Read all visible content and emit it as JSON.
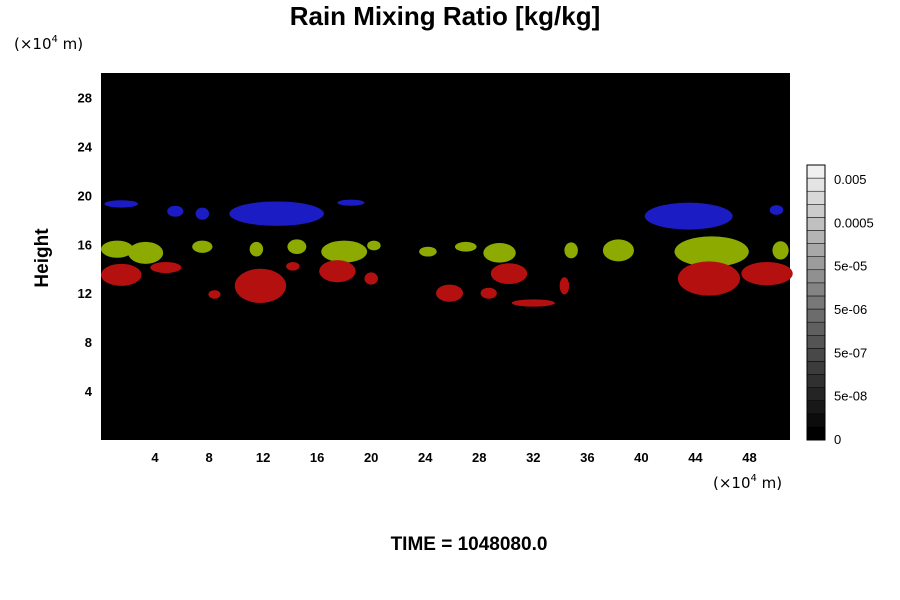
{
  "chart_data": {
    "type": "heatmap",
    "title": "Rain Mixing Ratio [kg/kg]",
    "ylabel": "Height",
    "x_unit_prefix": "(×10",
    "x_unit_exp": "4",
    "x_unit_suffix": " m)",
    "y_unit_prefix": "(×10",
    "y_unit_exp": "4",
    "y_unit_suffix": " m)",
    "xlim": [
      0,
      51
    ],
    "ylim": [
      0,
      30
    ],
    "xticks": [
      4,
      8,
      12,
      16,
      20,
      24,
      28,
      32,
      36,
      40,
      44,
      48
    ],
    "yticks": [
      4,
      8,
      12,
      16,
      20,
      24,
      28
    ],
    "background": "#000000",
    "colorbar": {
      "labels": [
        "0.005",
        "0.0005",
        "5e-05",
        "5e-06",
        "5e-07",
        "5e-08",
        "0"
      ],
      "levels": 21,
      "color_min": "#000000",
      "color_max": "#f0f0f0"
    },
    "layers": [
      {
        "color": "#1c1cc4",
        "blobs": [
          {
            "x": 1.5,
            "y": 19.3,
            "w": 2.5,
            "h": 0.6
          },
          {
            "x": 5.5,
            "y": 18.7,
            "w": 1.2,
            "h": 0.9
          },
          {
            "x": 7.5,
            "y": 18.5,
            "w": 1.0,
            "h": 1.0
          },
          {
            "x": 13.0,
            "y": 18.5,
            "w": 7.0,
            "h": 2.0
          },
          {
            "x": 18.5,
            "y": 19.4,
            "w": 2.0,
            "h": 0.5
          },
          {
            "x": 43.5,
            "y": 18.3,
            "w": 6.5,
            "h": 2.2
          },
          {
            "x": 50.0,
            "y": 18.8,
            "w": 1.0,
            "h": 0.8
          }
        ]
      },
      {
        "color": "#8caa00",
        "blobs": [
          {
            "x": 1.2,
            "y": 15.6,
            "w": 2.4,
            "h": 1.4
          },
          {
            "x": 3.3,
            "y": 15.3,
            "w": 2.6,
            "h": 1.8
          },
          {
            "x": 7.5,
            "y": 15.8,
            "w": 1.5,
            "h": 1.0
          },
          {
            "x": 11.5,
            "y": 15.6,
            "w": 1.0,
            "h": 1.2
          },
          {
            "x": 14.5,
            "y": 15.8,
            "w": 1.4,
            "h": 1.2
          },
          {
            "x": 18.0,
            "y": 15.4,
            "w": 3.4,
            "h": 1.8
          },
          {
            "x": 20.2,
            "y": 15.9,
            "w": 1.0,
            "h": 0.8
          },
          {
            "x": 24.2,
            "y": 15.4,
            "w": 1.3,
            "h": 0.8
          },
          {
            "x": 27.0,
            "y": 15.8,
            "w": 1.6,
            "h": 0.8
          },
          {
            "x": 29.5,
            "y": 15.3,
            "w": 2.4,
            "h": 1.6
          },
          {
            "x": 34.8,
            "y": 15.5,
            "w": 1.0,
            "h": 1.3
          },
          {
            "x": 38.3,
            "y": 15.5,
            "w": 2.3,
            "h": 1.8
          },
          {
            "x": 45.2,
            "y": 15.4,
            "w": 5.5,
            "h": 2.5
          },
          {
            "x": 50.3,
            "y": 15.5,
            "w": 1.2,
            "h": 1.5
          }
        ]
      },
      {
        "color": "#b41010",
        "blobs": [
          {
            "x": 1.5,
            "y": 13.5,
            "w": 3.0,
            "h": 1.8
          },
          {
            "x": 4.8,
            "y": 14.1,
            "w": 2.3,
            "h": 0.9
          },
          {
            "x": 8.4,
            "y": 11.9,
            "w": 0.9,
            "h": 0.7
          },
          {
            "x": 11.8,
            "y": 12.6,
            "w": 3.8,
            "h": 2.8
          },
          {
            "x": 14.2,
            "y": 14.2,
            "w": 1.0,
            "h": 0.7
          },
          {
            "x": 17.5,
            "y": 13.8,
            "w": 2.7,
            "h": 1.8
          },
          {
            "x": 20.0,
            "y": 13.2,
            "w": 1.0,
            "h": 1.0
          },
          {
            "x": 25.8,
            "y": 12.0,
            "w": 2.0,
            "h": 1.4
          },
          {
            "x": 28.7,
            "y": 12.0,
            "w": 1.2,
            "h": 0.9
          },
          {
            "x": 30.2,
            "y": 13.6,
            "w": 2.7,
            "h": 1.7
          },
          {
            "x": 32.0,
            "y": 11.2,
            "w": 3.2,
            "h": 0.6
          },
          {
            "x": 34.3,
            "y": 12.6,
            "w": 0.7,
            "h": 1.4
          },
          {
            "x": 45.0,
            "y": 13.2,
            "w": 4.6,
            "h": 2.8
          },
          {
            "x": 49.3,
            "y": 13.6,
            "w": 3.8,
            "h": 1.9
          }
        ]
      }
    ]
  },
  "time_label": "TIME = 1048080.0"
}
